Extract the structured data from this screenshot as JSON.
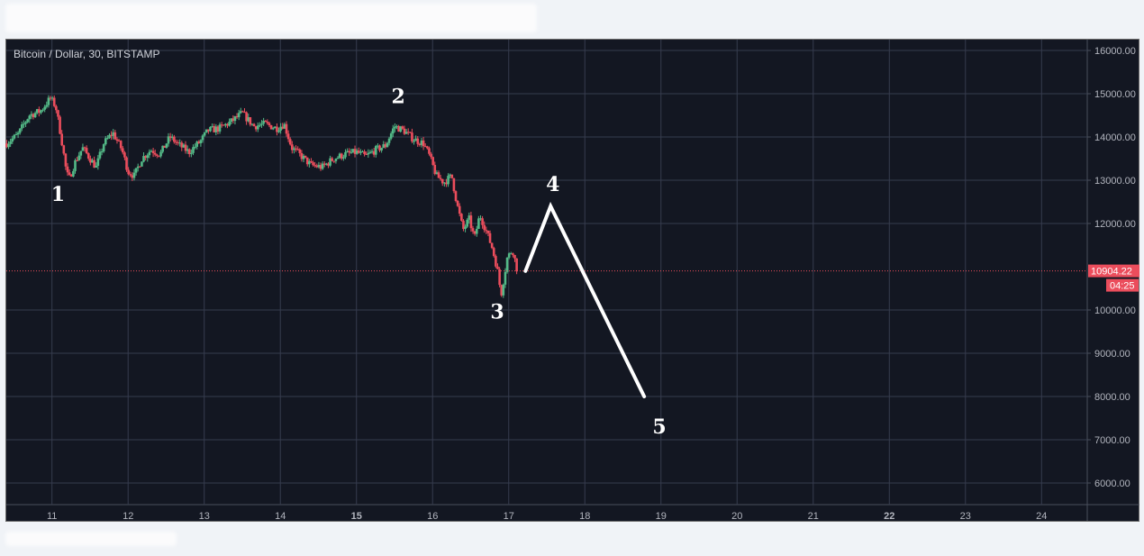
{
  "chart_data": {
    "type": "candlestick",
    "title": "Bitcoin / Dollar, 30, BITSTAMP",
    "ylim": [
      5500,
      16250
    ],
    "xlim": [
      10.4,
      24.6
    ],
    "y_ticks": [
      "16000.00",
      "15000.00",
      "14000.00",
      "13000.00",
      "12000.00",
      "10000.00",
      "9000.00",
      "8000.00",
      "7000.00",
      "6000.00"
    ],
    "y_tick_values": [
      16000,
      15000,
      14000,
      13000,
      12000,
      10000,
      9000,
      8000,
      7000,
      6000
    ],
    "x_ticks": [
      {
        "label": "11",
        "value": 11,
        "bold": false
      },
      {
        "label": "12",
        "value": 12,
        "bold": false
      },
      {
        "label": "13",
        "value": 13,
        "bold": false
      },
      {
        "label": "14",
        "value": 14,
        "bold": false
      },
      {
        "label": "15",
        "value": 15,
        "bold": true
      },
      {
        "label": "16",
        "value": 16,
        "bold": false
      },
      {
        "label": "17",
        "value": 17,
        "bold": false
      },
      {
        "label": "18",
        "value": 18,
        "bold": false
      },
      {
        "label": "19",
        "value": 19,
        "bold": false
      },
      {
        "label": "20",
        "value": 20,
        "bold": false
      },
      {
        "label": "21",
        "value": 21,
        "bold": false
      },
      {
        "label": "22",
        "value": 22,
        "bold": true
      },
      {
        "label": "23",
        "value": 23,
        "bold": false
      },
      {
        "label": "24",
        "value": 24,
        "bold": false
      }
    ],
    "price_path": [
      [
        10.4,
        13850
      ],
      [
        10.55,
        14050
      ],
      [
        10.7,
        14500
      ],
      [
        10.85,
        14600
      ],
      [
        10.98,
        14900
      ],
      [
        11.05,
        14700
      ],
      [
        11.12,
        14000
      ],
      [
        11.18,
        13300
      ],
      [
        11.22,
        13000
      ],
      [
        11.3,
        13400
      ],
      [
        11.4,
        13750
      ],
      [
        11.5,
        13500
      ],
      [
        11.58,
        13300
      ],
      [
        11.68,
        13850
      ],
      [
        11.8,
        14100
      ],
      [
        11.92,
        13700
      ],
      [
        12.0,
        13200
      ],
      [
        12.08,
        13100
      ],
      [
        12.18,
        13500
      ],
      [
        12.3,
        13700
      ],
      [
        12.42,
        13600
      ],
      [
        12.55,
        14000
      ],
      [
        12.68,
        13800
      ],
      [
        12.8,
        13650
      ],
      [
        12.95,
        13900
      ],
      [
        13.05,
        14150
      ],
      [
        13.2,
        14200
      ],
      [
        13.35,
        14350
      ],
      [
        13.5,
        14550
      ],
      [
        13.65,
        14250
      ],
      [
        13.8,
        14300
      ],
      [
        13.95,
        14200
      ],
      [
        14.05,
        14300
      ],
      [
        14.15,
        13750
      ],
      [
        14.28,
        13550
      ],
      [
        14.4,
        13350
      ],
      [
        14.55,
        13300
      ],
      [
        14.7,
        13500
      ],
      [
        14.85,
        13600
      ],
      [
        15.0,
        13650
      ],
      [
        15.12,
        13550
      ],
      [
        15.25,
        13700
      ],
      [
        15.38,
        13800
      ],
      [
        15.5,
        14250
      ],
      [
        15.62,
        14150
      ],
      [
        15.75,
        13950
      ],
      [
        15.88,
        13850
      ],
      [
        15.95,
        13600
      ],
      [
        16.05,
        13100
      ],
      [
        16.15,
        12950
      ],
      [
        16.25,
        13100
      ],
      [
        16.32,
        12450
      ],
      [
        16.4,
        11850
      ],
      [
        16.48,
        12100
      ],
      [
        16.55,
        11650
      ],
      [
        16.62,
        12200
      ],
      [
        16.7,
        11850
      ],
      [
        16.78,
        11450
      ],
      [
        16.85,
        10950
      ],
      [
        16.9,
        10350
      ],
      [
        16.98,
        11200
      ],
      [
        17.05,
        11400
      ],
      [
        17.12,
        10850
      ]
    ],
    "last_price": 10904.22,
    "last_price_label": "10904.22",
    "countdown_label": "04:25",
    "projection": [
      [
        17.22,
        10900
      ],
      [
        17.55,
        12400
      ],
      [
        18.78,
        8000
      ]
    ],
    "wave_labels": [
      {
        "text": "1",
        "x": 11.08,
        "y": 12520
      },
      {
        "text": "2",
        "x": 15.55,
        "y": 14780
      },
      {
        "text": "3",
        "x": 16.85,
        "y": 9800
      },
      {
        "text": "4",
        "x": 17.58,
        "y": 12750
      },
      {
        "text": "5",
        "x": 18.98,
        "y": 7150
      }
    ],
    "colors": {
      "background": "#131722",
      "grid": "#363c4e",
      "up": "#53b987",
      "down": "#eb4d5c",
      "axis_text": "#b2b5be",
      "price_tag": "#eb4d5c",
      "annotation": "#ffffff"
    }
  }
}
